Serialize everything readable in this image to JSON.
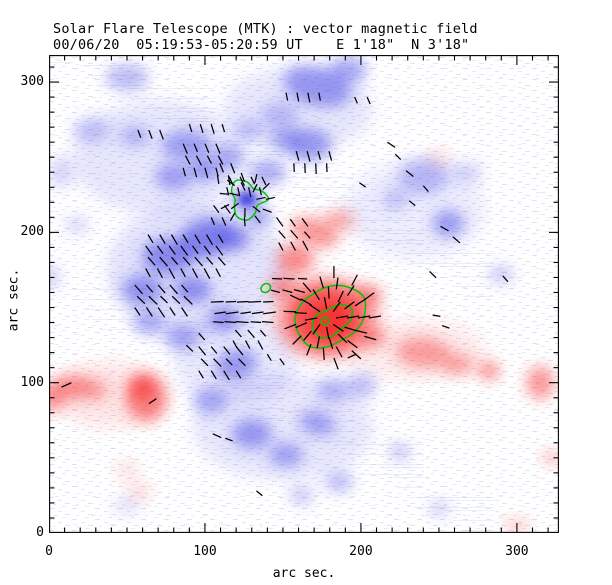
{
  "chart_data": {
    "type": "heatmap",
    "subtype": "vector magnetic field map with transverse-field vectors and contours",
    "title": "Solar Flare Telescope (MTK) : vector magnetic field",
    "subtitle": "00/06/20  05:19:53-05:20:59 UT    E 1'18\"  N 3'18\"",
    "xlabel": "arc sec.",
    "ylabel": "arc sec.",
    "xlim": [
      0,
      327
    ],
    "ylim": [
      0,
      318
    ],
    "xtick_values": [
      0,
      100,
      200,
      300
    ],
    "xtick_labels": [
      "0",
      "100",
      "200",
      "300"
    ],
    "ytick_values": [
      0,
      100,
      200,
      300
    ],
    "ytick_labels": [
      "0",
      "100",
      "200",
      "300"
    ],
    "minor_tick_interval": 10,
    "colors": {
      "positive_polarity": "#f23232",
      "negative_polarity": "#4646e4",
      "contour": "#00c400",
      "vector": "#000000",
      "frame": "#000000"
    },
    "blobs": {
      "negative": [
        [
          70,
          250,
          55,
          38,
          0.13
        ],
        [
          95,
          175,
          58,
          45,
          0.15
        ],
        [
          160,
          282,
          48,
          28,
          0.13
        ],
        [
          150,
          70,
          58,
          35,
          0.13
        ],
        [
          235,
          215,
          45,
          33,
          0.09
        ],
        [
          120,
          115,
          40,
          30,
          0.12
        ],
        [
          50,
          303,
          14,
          9,
          0.35
        ],
        [
          27,
          268,
          12,
          8,
          0.28
        ],
        [
          55,
          264,
          10,
          7,
          0.33
        ],
        [
          88,
          258,
          16,
          10,
          0.45
        ],
        [
          115,
          250,
          10,
          8,
          0.4
        ],
        [
          8,
          240,
          8,
          10,
          0.22
        ],
        [
          80,
          237,
          12,
          9,
          0.45
        ],
        [
          100,
          242,
          10,
          8,
          0.5
        ],
        [
          172,
          297,
          22,
          13,
          0.5,
          -15
        ],
        [
          192,
          308,
          12,
          9,
          0.45
        ],
        [
          148,
          278,
          12,
          9,
          0.3
        ],
        [
          167,
          258,
          14,
          11,
          0.5
        ],
        [
          152,
          262,
          10,
          8,
          0.4
        ],
        [
          128,
          268,
          9,
          7,
          0.3
        ],
        [
          240,
          237,
          16,
          12,
          0.33
        ],
        [
          256,
          206,
          10,
          9,
          0.5
        ],
        [
          222,
          222,
          8,
          7,
          0.28
        ],
        [
          290,
          172,
          8,
          6,
          0.3
        ],
        [
          268,
          240,
          10,
          7,
          0.22
        ],
        [
          127,
          222,
          9,
          7,
          0.72
        ],
        [
          127,
          222,
          5,
          4,
          0.88
        ],
        [
          100,
          196,
          18,
          13,
          0.62,
          20
        ],
        [
          76,
          184,
          16,
          12,
          0.58
        ],
        [
          60,
          162,
          13,
          10,
          0.52
        ],
        [
          92,
          162,
          12,
          9,
          0.55
        ],
        [
          112,
          143,
          10,
          8,
          0.5
        ],
        [
          85,
          130,
          11,
          8,
          0.45
        ],
        [
          64,
          140,
          10,
          8,
          0.4
        ],
        [
          118,
          196,
          10,
          8,
          0.6
        ],
        [
          135,
          210,
          8,
          6,
          0.5
        ],
        [
          140,
          240,
          12,
          9,
          0.42
        ],
        [
          120,
          112,
          14,
          10,
          0.5,
          15
        ],
        [
          103,
          88,
          11,
          9,
          0.4
        ],
        [
          130,
          66,
          13,
          10,
          0.5
        ],
        [
          152,
          52,
          11,
          8,
          0.45
        ],
        [
          172,
          73,
          12,
          8,
          0.45,
          -15
        ],
        [
          186,
          34,
          9,
          7,
          0.35
        ],
        [
          162,
          25,
          8,
          6,
          0.3
        ],
        [
          225,
          54,
          7,
          6,
          0.3
        ],
        [
          250,
          16,
          6,
          5,
          0.3
        ],
        [
          200,
          98,
          10,
          8,
          0.35
        ],
        [
          182,
          95,
          10,
          8,
          0.35
        ],
        [
          50,
          18,
          9,
          5,
          0.18
        ],
        [
          0,
          170,
          7,
          8,
          0.25
        ],
        [
          18,
          205,
          8,
          6,
          0.2
        ]
      ],
      "positive": [
        [
          40,
          92,
          38,
          22,
          0.12
        ],
        [
          235,
          122,
          45,
          20,
          0.1
        ],
        [
          62,
          90,
          13,
          16,
          0.55,
          10
        ],
        [
          60,
          96,
          7,
          7,
          0.7
        ],
        [
          15,
          97,
          13,
          8,
          0.5
        ],
        [
          2,
          90,
          8,
          9,
          0.5
        ],
        [
          30,
          95,
          8,
          6,
          0.4
        ],
        [
          50,
          42,
          7,
          5,
          0.2
        ],
        [
          58,
          28,
          8,
          5,
          0.2
        ],
        [
          178,
          143,
          34,
          28,
          0.4
        ],
        [
          178,
          143,
          24,
          21,
          0.8
        ],
        [
          180,
          141,
          12,
          11,
          0.95
        ],
        [
          158,
          182,
          12,
          10,
          0.55
        ],
        [
          170,
          200,
          16,
          9,
          0.5,
          -20
        ],
        [
          150,
          164,
          9,
          8,
          0.5
        ],
        [
          186,
          208,
          10,
          7,
          0.4
        ],
        [
          205,
          158,
          9,
          7,
          0.5
        ],
        [
          208,
          130,
          8,
          6,
          0.5
        ],
        [
          240,
          120,
          18,
          10,
          0.42,
          -5
        ],
        [
          262,
          112,
          10,
          7,
          0.4
        ],
        [
          282,
          108,
          7,
          6,
          0.55
        ],
        [
          315,
          100,
          9,
          11,
          0.5
        ],
        [
          322,
          50,
          5,
          4,
          0.45
        ],
        [
          250,
          250,
          8,
          5,
          0.15
        ],
        [
          300,
          5,
          8,
          4,
          0.3
        ]
      ]
    },
    "contours": [
      {
        "cx": 127,
        "cy": 222,
        "r": 11,
        "wobble": [
          1.25,
          1.0,
          0.75,
          1.05,
          1.3,
          1.05,
          0.7,
          0.85,
          1.2,
          1.25,
          0.95,
          0.7
        ]
      },
      {
        "cx": 139,
        "cy": 163,
        "r": 3,
        "wobble": [
          1,
          1.1,
          1,
          0.9,
          1,
          1.1,
          1,
          0.9
        ]
      },
      {
        "cx": 179,
        "cy": 144,
        "r": 21,
        "wobble": [
          1.1,
          1.25,
          1.1,
          0.95,
          0.85,
          0.9,
          1.0,
          1.05,
          1.1,
          0.95,
          0.85,
          0.95
        ]
      },
      {
        "cx": 181,
        "cy": 142,
        "r": 11,
        "wobble": [
          1.15,
          1.35,
          1.05,
          0.7,
          0.6,
          0.8,
          1.05,
          1.2,
          1.25,
          1.05,
          0.8,
          0.85
        ]
      },
      {
        "cx": 177,
        "cy": 141,
        "r": 2.5,
        "wobble": [
          1,
          1,
          1,
          1,
          1,
          1
        ]
      }
    ],
    "vector_field": {
      "grids": [
        {
          "x": 57,
          "y": 268,
          "cols": 3,
          "rows": 1,
          "dx": 7,
          "dy": 8,
          "angle": -62,
          "len": 6
        },
        {
          "x": 90,
          "y": 272,
          "cols": 4,
          "rows": 1,
          "dx": 7,
          "dy": 8,
          "angle": -66,
          "len": 6
        },
        {
          "x": 86,
          "y": 243,
          "cols": 4,
          "rows": 3,
          "dx": 7,
          "dy": 8,
          "angle": -68,
          "len": 6.5
        },
        {
          "x": 108,
          "y": 238,
          "cols": 2,
          "rows": 2,
          "dx": 7,
          "dy": 8,
          "angle": -74,
          "len": 6.5
        },
        {
          "x": 114,
          "y": 230,
          "cols": 4,
          "rows": 2,
          "dx": 7,
          "dy": 7,
          "angle": -70,
          "len": 6
        },
        {
          "x": 104,
          "y": 210,
          "cols": 2,
          "rows": 2,
          "dx": 7,
          "dy": 8,
          "angle": -60,
          "len": 6
        },
        {
          "x": 62,
          "y": 176,
          "cols": 7,
          "rows": 4,
          "dx": 7.5,
          "dy": 7.5,
          "angle": -55,
          "len": 7
        },
        {
          "x": 55,
          "y": 150,
          "cols": 5,
          "rows": 3,
          "dx": 7.5,
          "dy": 7.5,
          "angle": -50,
          "len": 7
        },
        {
          "x": 112,
          "y": 140,
          "cols": 5,
          "rows": 3,
          "dx": 8,
          "dy": 7,
          "angle": 183,
          "len": 7.5
        },
        {
          "x": 96,
          "y": 108,
          "cols": 4,
          "rows": 3,
          "dx": 8,
          "dy": 8,
          "angle": -52,
          "len": 6.5
        },
        {
          "x": 118,
          "y": 128,
          "cols": 3,
          "rows": 2,
          "dx": 8,
          "dy": 7,
          "angle": -55,
          "len": 6
        },
        {
          "x": 150,
          "y": 188,
          "cols": 3,
          "rows": 3,
          "dx": 8,
          "dy": 8,
          "angle": 125,
          "len": 6.5
        },
        {
          "x": 148,
          "y": 160,
          "cols": 3,
          "rows": 2,
          "dx": 8,
          "dy": 9,
          "angle": 172,
          "len": 6.5
        },
        {
          "x": 157,
          "y": 246,
          "cols": 4,
          "rows": 2,
          "dx": 7,
          "dy": 8,
          "angle": -80,
          "len": 6.5
        },
        {
          "x": 152,
          "y": 293,
          "cols": 4,
          "rows": 1,
          "dx": 7,
          "dy": 8,
          "angle": -72,
          "len": 6
        },
        {
          "x": 196,
          "y": 290,
          "cols": 2,
          "rows": 1,
          "dx": 8,
          "dy": 8,
          "angle": -60,
          "len": 5
        }
      ],
      "radials": [
        {
          "cx": 127,
          "cy": 222,
          "len": 6,
          "twist": 12,
          "rings": [
            [
              6,
              7
            ],
            [
              12,
              11
            ]
          ]
        },
        {
          "cx": 178,
          "cy": 143,
          "len": 8,
          "twist": 10,
          "rings": [
            [
              6,
              8
            ],
            [
              13,
              13
            ],
            [
              20,
              15
            ],
            [
              27,
              7,
              -80,
              80
            ]
          ]
        }
      ],
      "singles": [
        [
          217,
          260,
          -35,
          6
        ],
        [
          229,
          241,
          -40,
          6
        ],
        [
          199,
          233,
          -35,
          5
        ],
        [
          231,
          221,
          -40,
          5
        ],
        [
          244,
          174,
          -45,
          6
        ],
        [
          251,
          204,
          -30,
          6
        ],
        [
          259,
          197,
          -42,
          6
        ],
        [
          291,
          171,
          -50,
          5
        ],
        [
          222,
          252,
          -45,
          5
        ],
        [
          240,
          231,
          -50,
          5
        ],
        [
          64,
          86,
          35,
          6
        ],
        [
          8,
          97,
          25,
          7
        ],
        [
          105,
          66,
          -25,
          6
        ],
        [
          113,
          63,
          -20,
          5
        ],
        [
          197,
          119,
          205,
          6
        ],
        [
          133,
          28,
          -40,
          5
        ],
        [
          96,
          133,
          -50,
          6
        ],
        [
          88,
          125,
          -45,
          6
        ],
        [
          140,
          119,
          -60,
          5
        ],
        [
          148,
          116,
          -55,
          5
        ],
        [
          246,
          145,
          -10,
          5
        ],
        [
          252,
          138,
          -20,
          5
        ]
      ]
    }
  }
}
